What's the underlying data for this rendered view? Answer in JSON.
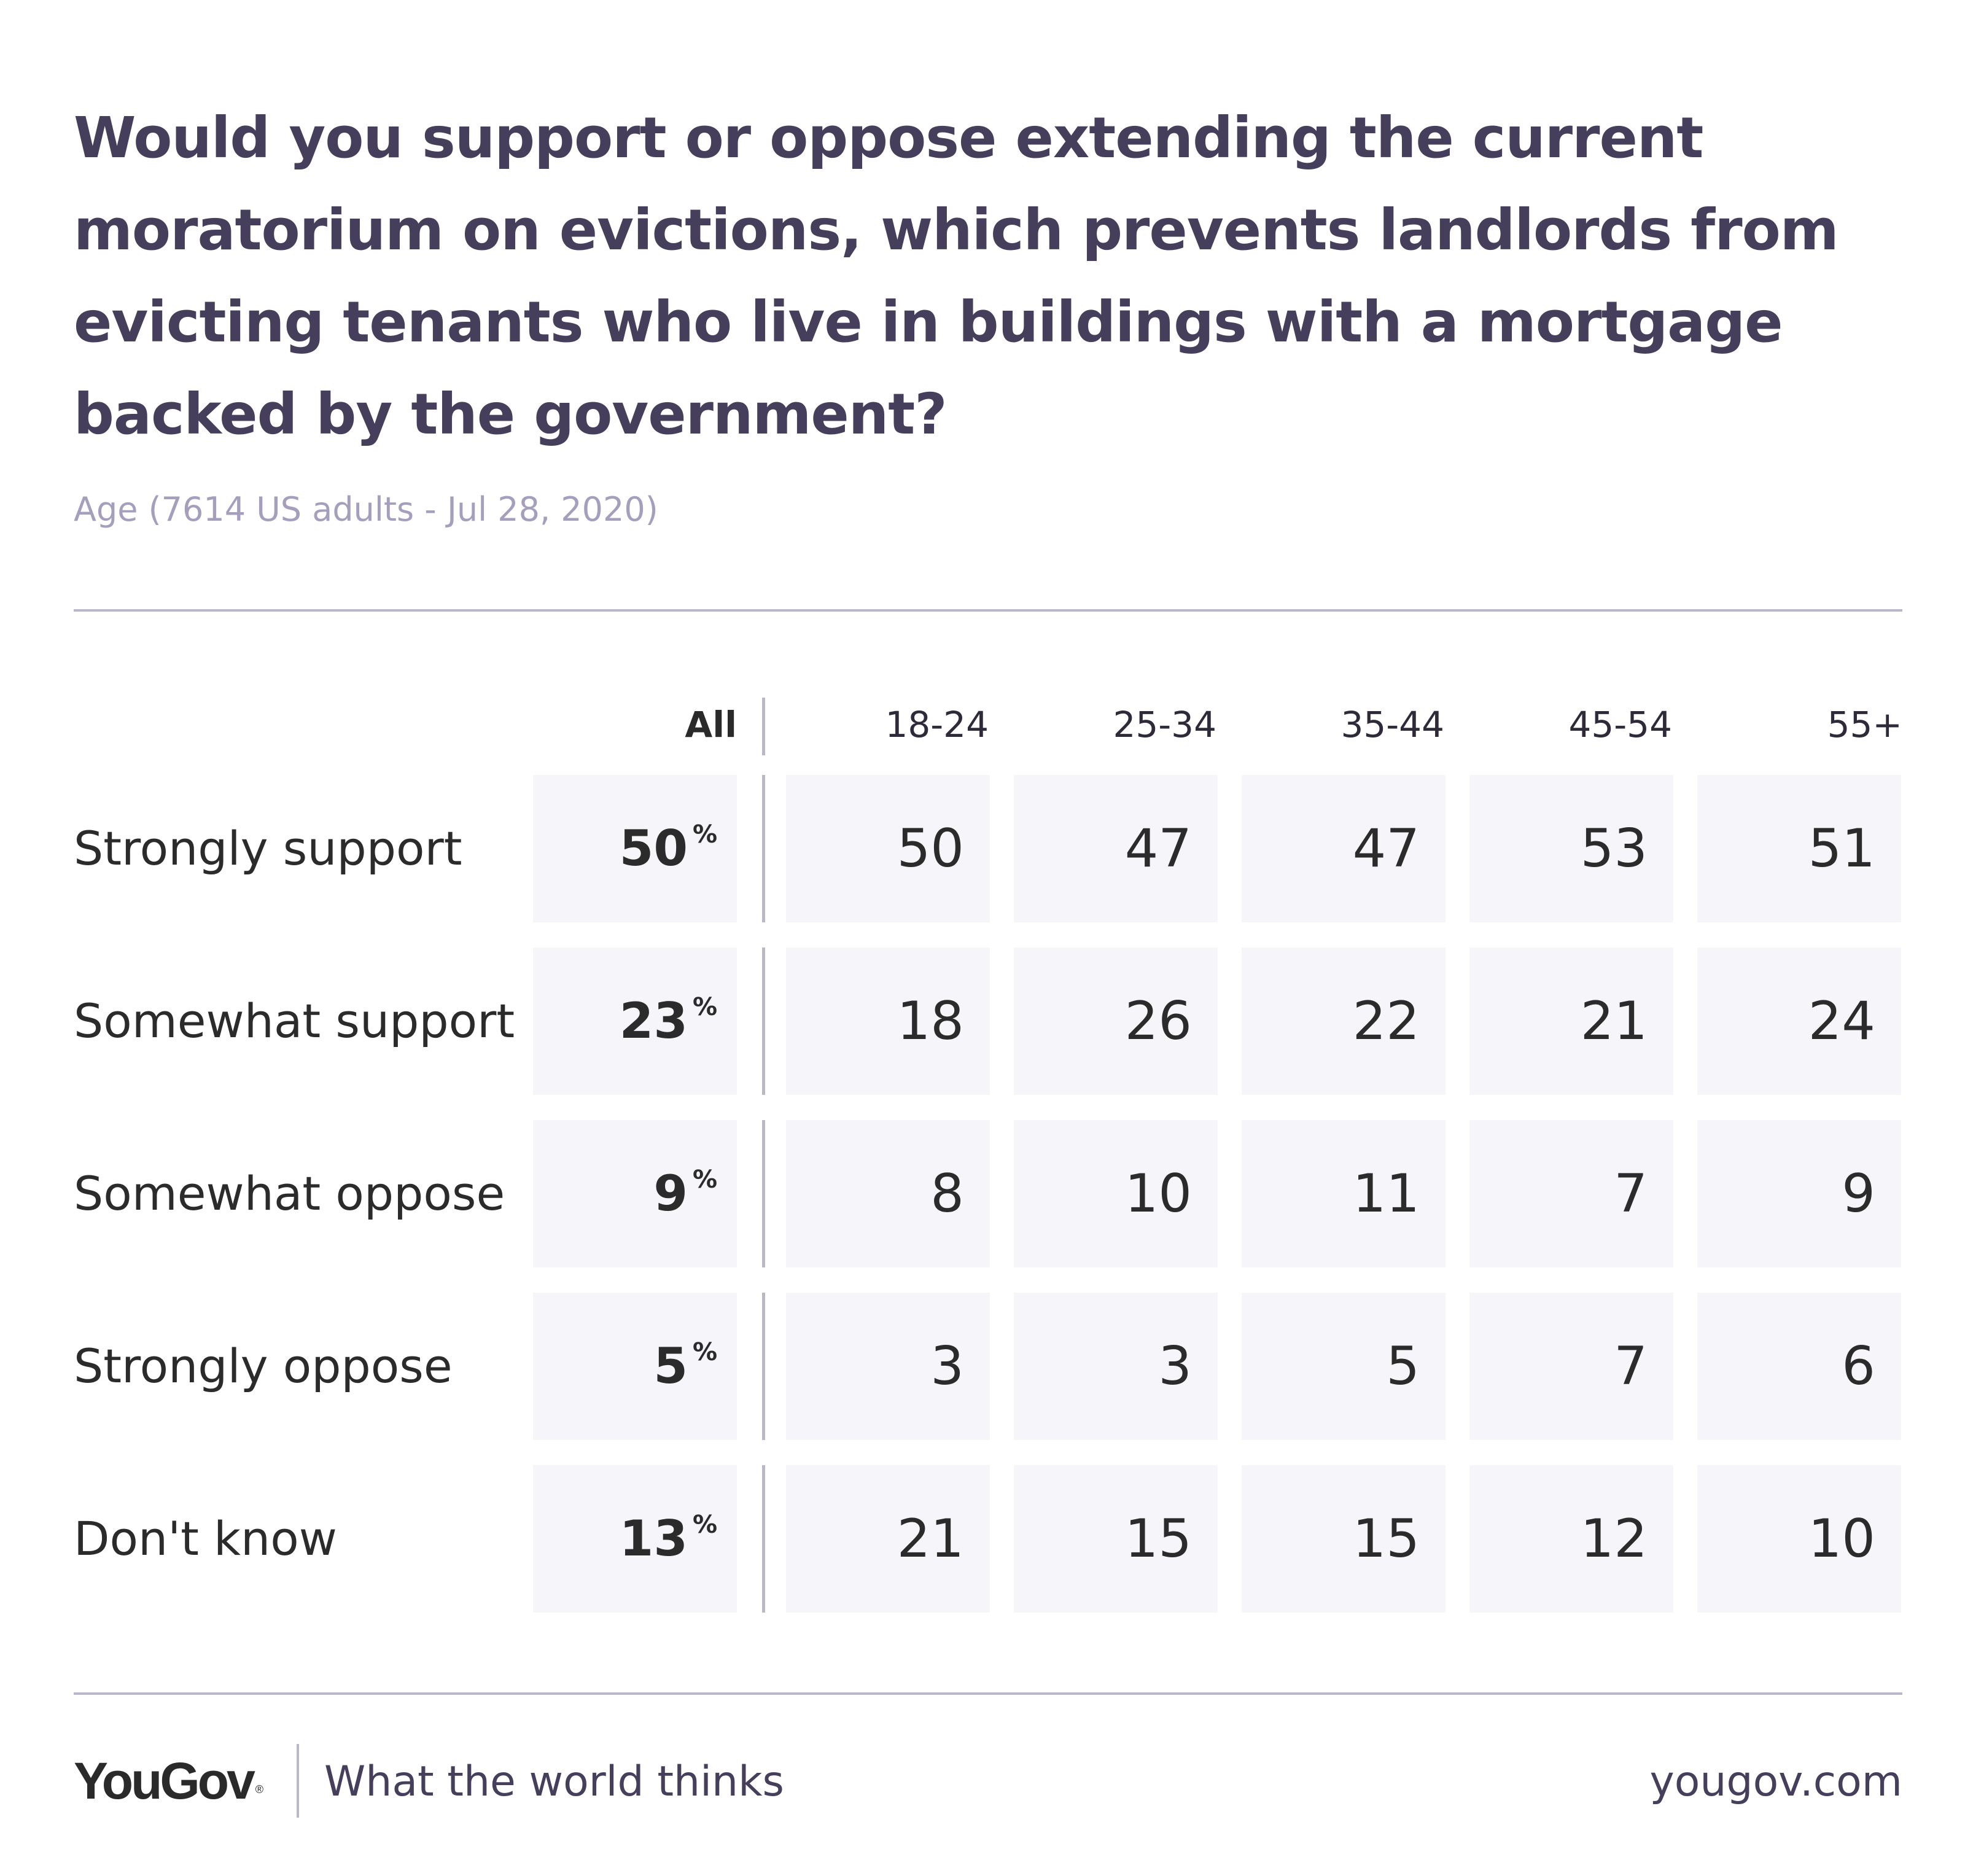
{
  "title": "Would you support or oppose extending the current moratorium on evictions, which prevents landlords from evicting tenants who live in buildings with a mortgage backed by the government?",
  "subtitle": "Age (7614 US adults - Jul 28, 2020)",
  "colors": {
    "title": "#463f5c",
    "subtitle": "#a59fbd",
    "rule": "#bbb6c9",
    "cell_background": "#f5f5fa",
    "text": "#2b2b2b"
  },
  "chart_data": {
    "type": "table",
    "columns": [
      "All",
      "18-24",
      "25-34",
      "35-44",
      "45-54",
      "55+"
    ],
    "percent_symbol": "%",
    "rows": [
      {
        "label": "Strongly support",
        "all": "50",
        "values": [
          "50",
          "47",
          "47",
          "53",
          "51"
        ]
      },
      {
        "label": "Somewhat support",
        "all": "23",
        "values": [
          "18",
          "26",
          "22",
          "21",
          "24"
        ]
      },
      {
        "label": "Somewhat oppose",
        "all": "9",
        "values": [
          "8",
          "10",
          "11",
          "7",
          "9"
        ]
      },
      {
        "label": "Strongly oppose",
        "all": "5",
        "values": [
          "3",
          "3",
          "5",
          "7",
          "6"
        ]
      },
      {
        "label": "Don't know",
        "all": "13",
        "values": [
          "21",
          "15",
          "15",
          "12",
          "10"
        ]
      }
    ]
  },
  "footer": {
    "brand": "YouGov",
    "brand_mark": "®",
    "tagline": "What the world thinks",
    "url": "yougov.com"
  }
}
